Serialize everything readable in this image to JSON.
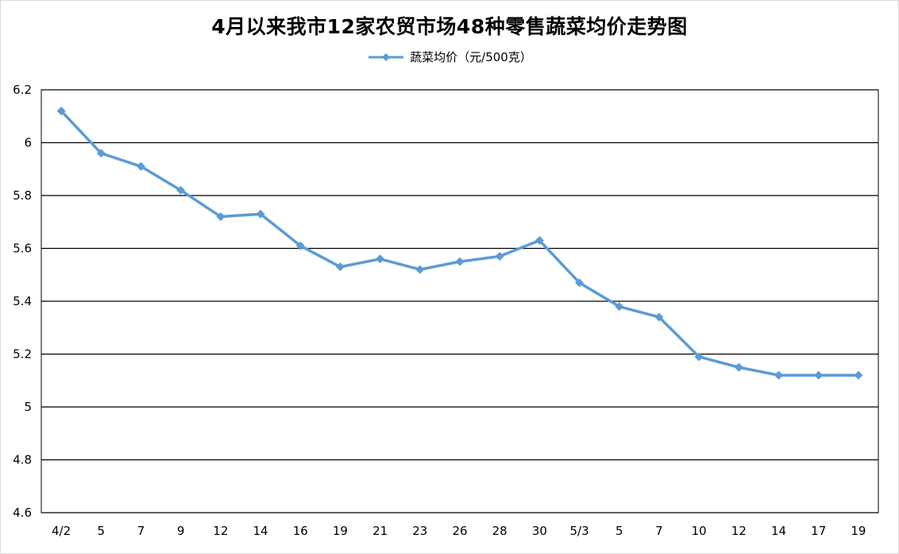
{
  "chart_data": {
    "type": "line",
    "title": "4月以来我市12家农贸市场48种零售蔬菜均价走势图",
    "xlabel": "",
    "ylabel": "",
    "categories": [
      "4/2",
      "5",
      "7",
      "9",
      "12",
      "14",
      "16",
      "19",
      "21",
      "23",
      "26",
      "28",
      "30",
      "5/3",
      "5",
      "7",
      "10",
      "12",
      "14",
      "17",
      "19"
    ],
    "series": [
      {
        "name": "蔬菜均价（元/500克）",
        "color": "#5b9bd5",
        "values": [
          6.12,
          5.96,
          5.91,
          5.82,
          5.72,
          5.73,
          5.61,
          5.53,
          5.56,
          5.52,
          5.55,
          5.57,
          5.63,
          5.47,
          5.38,
          5.34,
          5.19,
          5.15,
          5.12,
          5.12,
          5.12
        ]
      }
    ],
    "ylim": [
      4.6,
      6.2
    ],
    "yticks": [
      "4.6",
      "4.8",
      "5",
      "5.2",
      "5.4",
      "5.6",
      "5.8",
      "6",
      "6.2"
    ],
    "grid": true,
    "legend_position": "top-center"
  }
}
